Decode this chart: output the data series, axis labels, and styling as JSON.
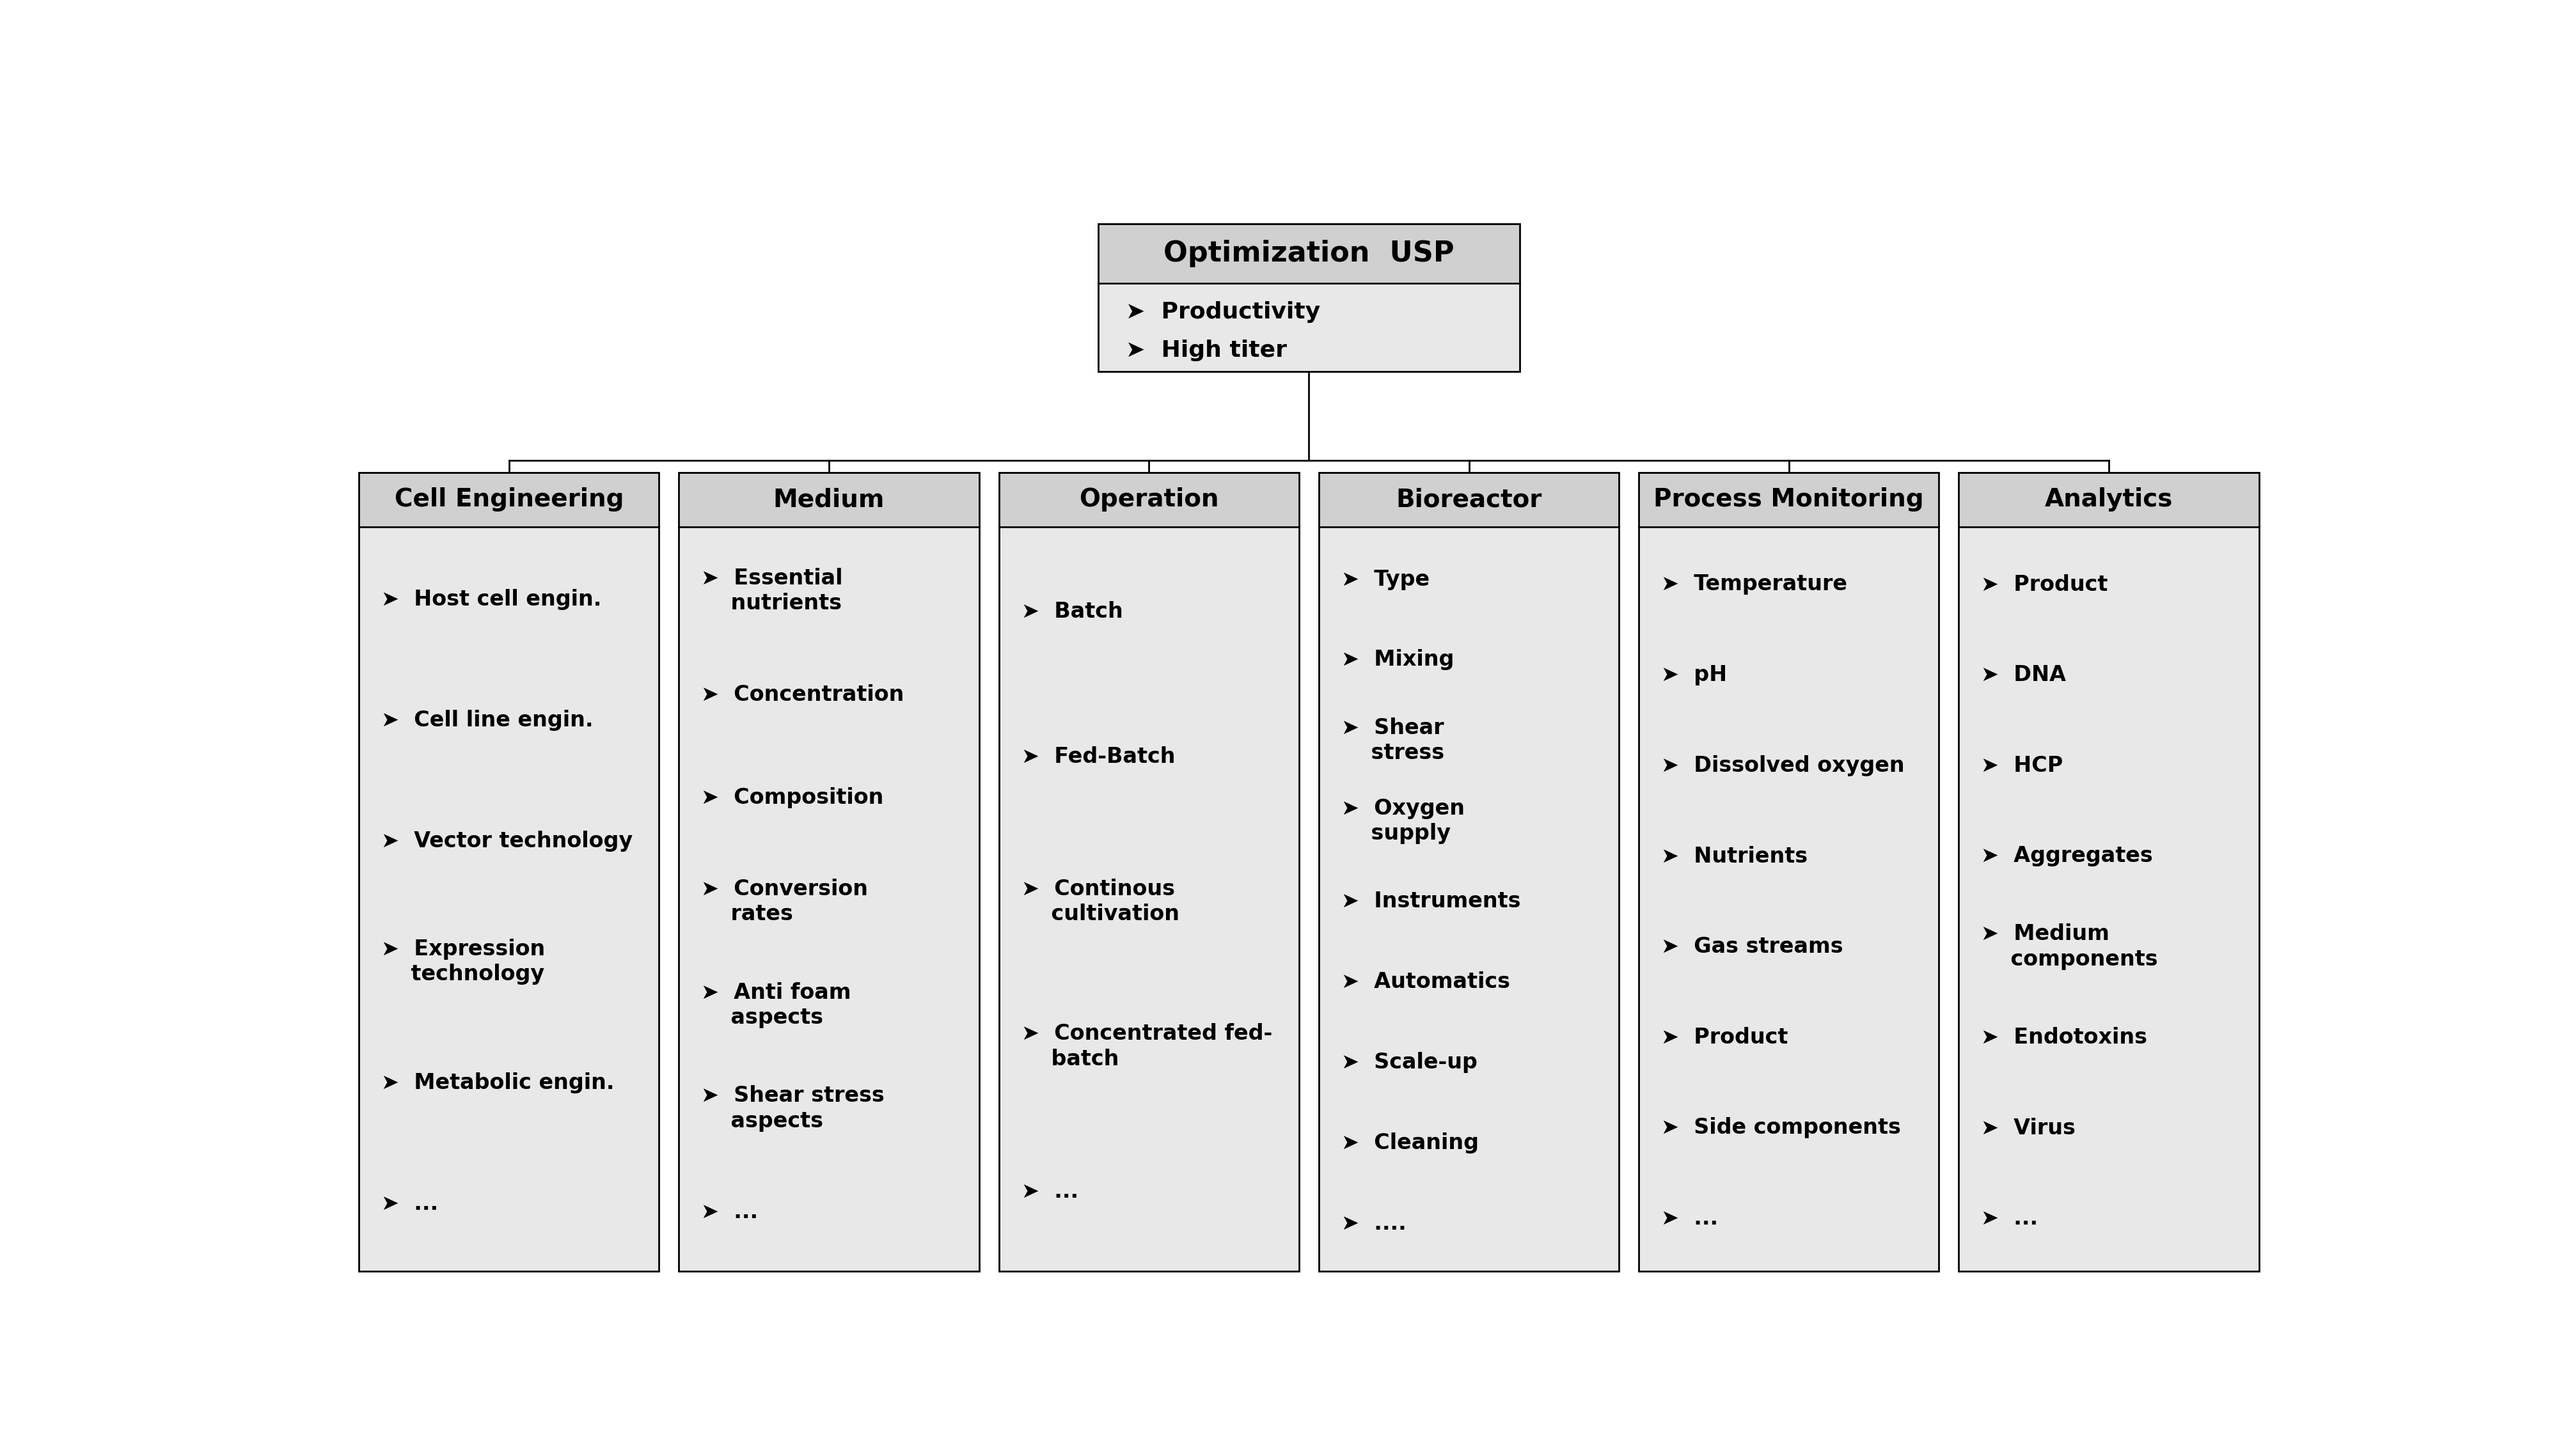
{
  "title": "Optimization  USP",
  "title_bullets": [
    "➤  Productivity",
    "➤  High titer"
  ],
  "box_bg_title": "#d0d0d0",
  "box_bg_content": "#e8e8e8",
  "box_border": "#000000",
  "white_bg": "#ffffff",
  "line_color": "#000000",
  "title_fontsize": 32,
  "cat_title_fontsize": 28,
  "item_fontsize": 24,
  "bullet_fontsize": 26,
  "categories": [
    {
      "name": "Cell Engineering",
      "items": [
        "➤  Host cell engin.",
        "➤  Cell line engin.",
        "➤  Vector technology",
        "➤  Expression\n    technology",
        "➤  Metabolic engin.",
        "➤  ..."
      ]
    },
    {
      "name": "Medium",
      "items": [
        "➤  Essential\n    nutrients",
        "➤  Concentration",
        "➤  Composition",
        "➤  Conversion\n    rates",
        "➤  Anti foam\n    aspects",
        "➤  Shear stress\n    aspects",
        "➤  ..."
      ]
    },
    {
      "name": "Operation",
      "items": [
        "➤  Batch",
        "➤  Fed-Batch",
        "➤  Continous\n    cultivation",
        "➤  Concentrated fed-\n    batch",
        "➤  ..."
      ]
    },
    {
      "name": "Bioreactor",
      "items": [
        "➤  Type",
        "➤  Mixing",
        "➤  Shear\n    stress",
        "➤  Oxygen\n    supply",
        "➤  Instruments",
        "➤  Automatics",
        "➤  Scale-up",
        "➤  Cleaning",
        "➤  ...."
      ]
    },
    {
      "name": "Process Monitoring",
      "items": [
        "➤  Temperature",
        "➤  pH",
        "➤  Dissolved oxygen",
        "➤  Nutrients",
        "➤  Gas streams",
        "➤  Product",
        "➤  Side components",
        "➤  ..."
      ]
    },
    {
      "name": "Analytics",
      "items": [
        "➤  Product",
        "➤  DNA",
        "➤  HCP",
        "➤  Aggregates",
        "➤  Medium\n    components",
        "➤  Endotoxins",
        "➤  Virus",
        "➤  ..."
      ]
    }
  ]
}
